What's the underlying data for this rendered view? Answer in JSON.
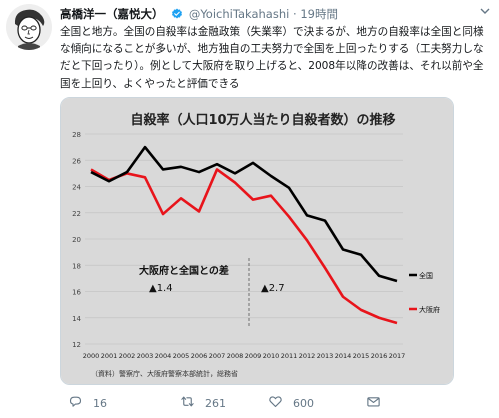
{
  "tweet": {
    "name": "高橋洋一（嘉悦大）",
    "handle": "@YoichiTakahashi",
    "separator": "·",
    "time": "19時間",
    "text": "全国と地方。全国の自殺率は金融政策（失業率）で決まるが、地方の自殺率は全国と同様な傾向になることが多いが、地方独自の工夫努力で全国を上回ったりする（工夫努力しなだと下回ったり）。例として大阪府を取り上げると、2008年以降の改善は、それ以前や全国を上回り、よくやったと評価できる",
    "replies": "16",
    "retweets": "261",
    "likes": "600"
  },
  "icons": {
    "avatar": "caricature-avatar-icon",
    "verified": "verified-badge-icon",
    "more": "chevron-down-icon",
    "reply": "reply-icon",
    "retweet": "retweet-icon",
    "like": "heart-icon",
    "message": "envelope-icon"
  },
  "colors": {
    "osaka": "#e8141b",
    "national": "#000000",
    "verified": "#1da1f2",
    "secondary_text": "#657786",
    "chart_bg": "#d9d9d9"
  },
  "chart_data": {
    "type": "line",
    "title": "自殺率（人口10万人当たり自殺者数）の推移",
    "x": [
      "2000",
      "2001",
      "2002",
      "2003",
      "2004",
      "2005",
      "2006",
      "2007",
      "2008",
      "2009",
      "2010",
      "2011",
      "2012",
      "2013",
      "2014",
      "2015",
      "2016",
      "2017"
    ],
    "series": [
      {
        "name": "大阪府",
        "color": "#e8141b",
        "values": [
          25.3,
          24.5,
          25.0,
          24.7,
          21.9,
          23.1,
          22.1,
          25.3,
          24.3,
          23.0,
          23.3,
          21.7,
          19.9,
          17.8,
          15.6,
          14.6,
          14.0,
          13.6
        ]
      },
      {
        "name": "全国",
        "color": "#000000",
        "values": [
          25.1,
          24.4,
          25.1,
          27.0,
          25.3,
          25.5,
          25.1,
          25.7,
          25.0,
          25.8,
          24.8,
          23.9,
          21.8,
          21.4,
          19.2,
          18.8,
          17.2,
          16.8
        ]
      }
    ],
    "ylim": [
      12,
      28
    ],
    "yticks": [
      "12",
      "14",
      "16",
      "18",
      "20",
      "22",
      "24",
      "26",
      "28"
    ],
    "grid": true,
    "annotation_title": "大阪府と全国との差",
    "annotations": [
      "▲1.4",
      "▲2.7"
    ],
    "source": "（資料）警察庁、大阪府警察本部統計，総務省"
  }
}
